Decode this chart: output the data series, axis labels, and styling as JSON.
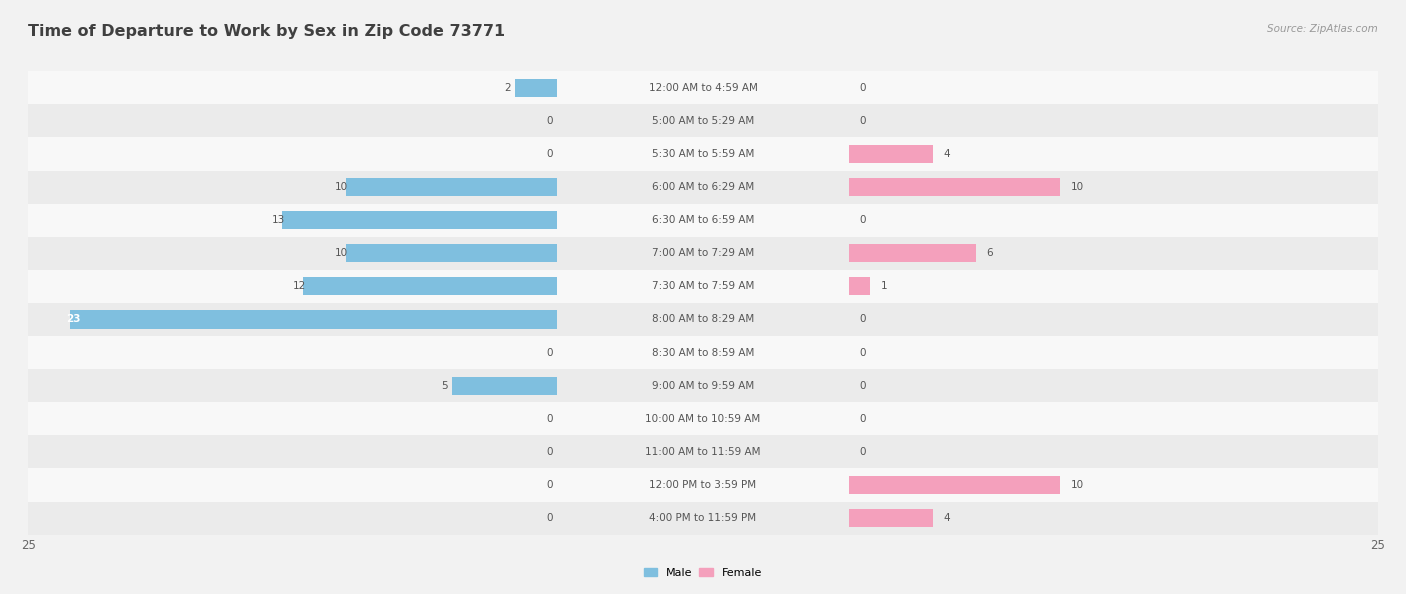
{
  "title": "Time of Departure to Work by Sex in Zip Code 73771",
  "source": "Source: ZipAtlas.com",
  "categories": [
    "12:00 AM to 4:59 AM",
    "5:00 AM to 5:29 AM",
    "5:30 AM to 5:59 AM",
    "6:00 AM to 6:29 AM",
    "6:30 AM to 6:59 AM",
    "7:00 AM to 7:29 AM",
    "7:30 AM to 7:59 AM",
    "8:00 AM to 8:29 AM",
    "8:30 AM to 8:59 AM",
    "9:00 AM to 9:59 AM",
    "10:00 AM to 10:59 AM",
    "11:00 AM to 11:59 AM",
    "12:00 PM to 3:59 PM",
    "4:00 PM to 11:59 PM"
  ],
  "male": [
    2,
    0,
    0,
    10,
    13,
    10,
    12,
    23,
    0,
    5,
    0,
    0,
    0,
    0
  ],
  "female": [
    0,
    0,
    4,
    10,
    0,
    6,
    1,
    0,
    0,
    0,
    0,
    0,
    10,
    4
  ],
  "male_color": "#7fbfdf",
  "female_color": "#f4a0bc",
  "bg_color": "#f2f2f2",
  "row_bg_colors": [
    "#f8f8f8",
    "#ebebeb"
  ],
  "x_max": 25,
  "bar_height": 0.55,
  "title_fontsize": 11.5,
  "label_fontsize": 7.5,
  "cat_fontsize": 7.5,
  "tick_fontsize": 8.5,
  "source_fontsize": 7.5,
  "value_color": "#555555",
  "value_color_white": "#ffffff",
  "cat_color": "#555555",
  "title_color": "#404040"
}
